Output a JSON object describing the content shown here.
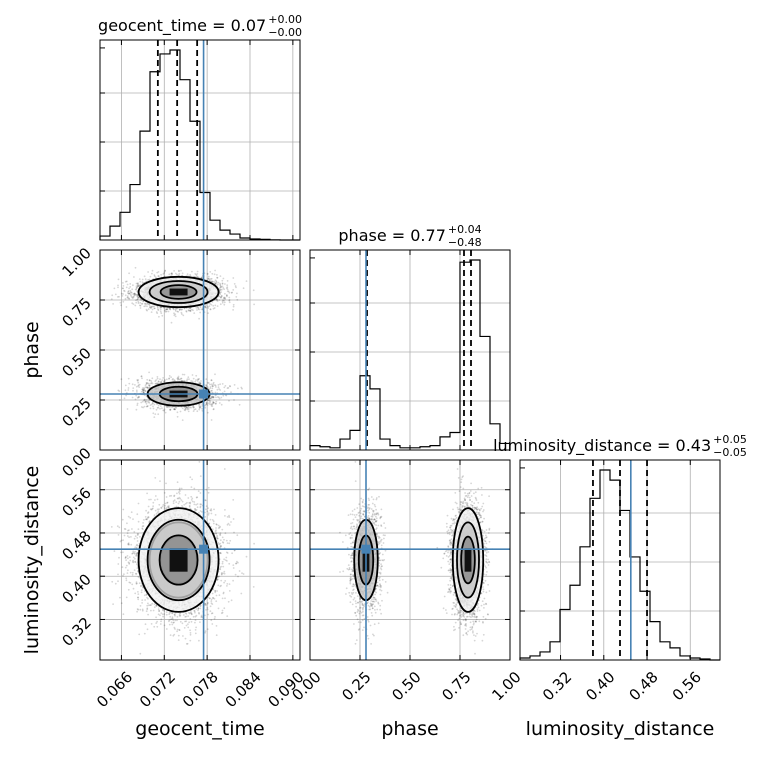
{
  "chart_data": {
    "type": "corner",
    "parameters": [
      {
        "name": "geocent_time",
        "xlabel": "geocent_time",
        "range": [
          0.063,
          0.091
        ],
        "ticks": [
          "0.066",
          "0.072",
          "0.078",
          "0.084",
          "0.090"
        ],
        "truth": 0.0775,
        "title_main": "geocent_time = 0.07",
        "title_sup": "+0.00",
        "title_sub": "−0.00",
        "quantiles": [
          0.0711,
          0.0738,
          0.0766
        ],
        "hist_edges_start": 0.063,
        "hist_bin_width": 0.0014,
        "hist": [
          0.02,
          0.07,
          0.14,
          0.28,
          0.55,
          0.85,
          0.94,
          0.96,
          0.81,
          0.6,
          0.24,
          0.1,
          0.05,
          0.03,
          0.01,
          0.005,
          0.003,
          0.001,
          0,
          0
        ]
      },
      {
        "name": "phase",
        "xlabel": "phase",
        "ylabel": "phase",
        "range": [
          0.0,
          1.0
        ],
        "ticks": [
          "0.00",
          "0.25",
          "0.50",
          "0.75",
          "1.00"
        ],
        "truth": 0.28,
        "title_main": "phase = 0.77",
        "title_sup": "+0.04",
        "title_sub": "−0.48",
        "quantiles": [
          0.285,
          0.77,
          0.805
        ],
        "hist_edges_start": 0.0,
        "hist_bin_width": 0.05,
        "hist": [
          0.02,
          0.015,
          0.01,
          0.05,
          0.09,
          0.34,
          0.28,
          0.05,
          0.02,
          0.01,
          0.01,
          0.015,
          0.02,
          0.06,
          0.08,
          0.86,
          0.87,
          0.52,
          0.12,
          0.03
        ]
      },
      {
        "name": "luminosity_distance",
        "xlabel": "luminosity_distance",
        "ylabel": "luminosity_distance",
        "range": [
          0.245,
          0.615
        ],
        "ticks": [
          "0.32",
          "0.40",
          "0.48",
          "0.56"
        ],
        "truth": 0.45,
        "title_main": "luminosity_distance = 0.43",
        "title_sup": "+0.05",
        "title_sub": "−0.05",
        "quantiles": [
          0.38,
          0.43,
          0.48
        ],
        "hist_edges_start": 0.245,
        "hist_bin_width": 0.0185,
        "hist": [
          0.01,
          0.02,
          0.04,
          0.09,
          0.25,
          0.37,
          0.56,
          0.8,
          0.94,
          0.89,
          0.74,
          0.51,
          0.34,
          0.19,
          0.09,
          0.06,
          0.02,
          0.01,
          0.005,
          0
        ]
      }
    ],
    "posterior_modes": [
      {
        "geocent_time": 0.074,
        "phase": 0.79,
        "luminosity_distance": 0.43,
        "weight": 0.68
      },
      {
        "geocent_time": 0.074,
        "phase": 0.28,
        "luminosity_distance": 0.43,
        "weight": 0.32
      }
    ],
    "grid": true,
    "truth_color": "#4682b4"
  }
}
